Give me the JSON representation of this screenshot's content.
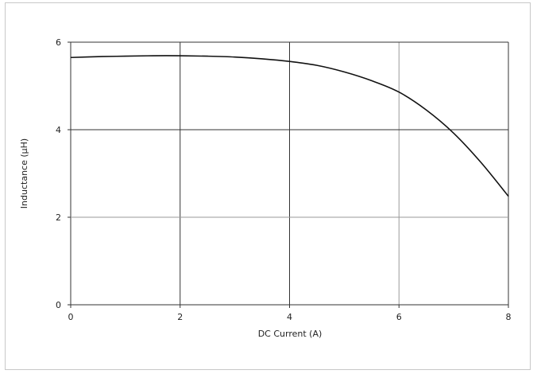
{
  "chart_data": {
    "type": "line",
    "title": "",
    "xlabel": "DC Current (A)",
    "ylabel": "Inductance (μH)",
    "xlim": [
      0,
      8
    ],
    "ylim": [
      0,
      6
    ],
    "x_ticks": [
      0,
      2,
      4,
      6,
      8
    ],
    "y_ticks": [
      0,
      2,
      4,
      6
    ],
    "grid": true,
    "series": [
      {
        "x": [
          0,
          0.5,
          1,
          1.5,
          2,
          2.5,
          3,
          3.5,
          4,
          4.5,
          5,
          5.5,
          6,
          6.5,
          7,
          7.5,
          8
        ],
        "values": [
          5.65,
          5.67,
          5.68,
          5.69,
          5.69,
          5.68,
          5.66,
          5.62,
          5.56,
          5.47,
          5.32,
          5.12,
          4.86,
          4.45,
          3.92,
          3.25,
          2.48
        ]
      }
    ],
    "colors": {
      "line": "#111111",
      "grid_dark": "#333333",
      "grid_light": "#9a9a9a"
    }
  }
}
